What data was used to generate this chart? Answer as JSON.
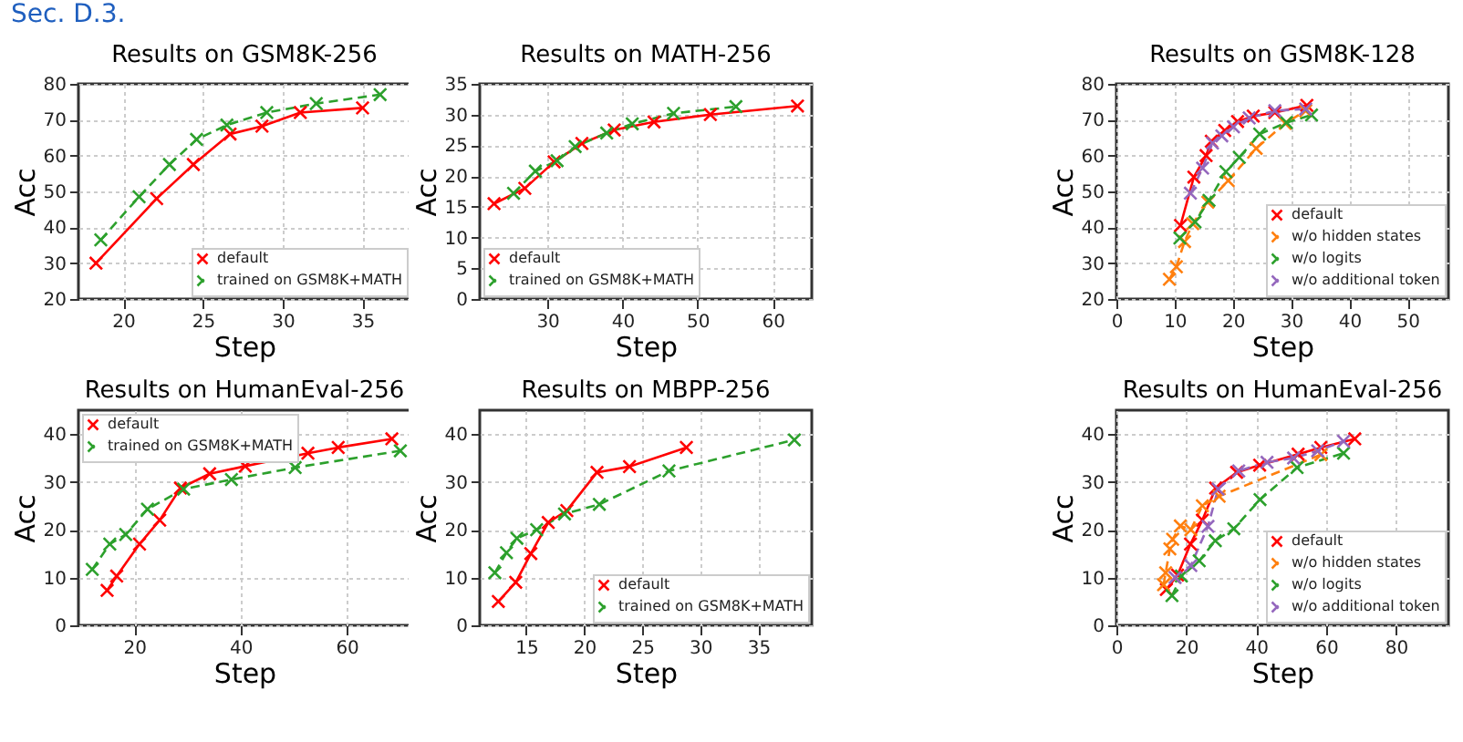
{
  "chart_data": [
    {
      "type": "line",
      "title": "Results on GSM8K-256",
      "xlabel": "Step",
      "ylabel": "Acc",
      "annotations": [
        "Sec. D.3."
      ],
      "xlim": [
        17.2,
        38
      ],
      "xticks": [
        20,
        25,
        30,
        35
      ],
      "ylim": [
        20,
        80
      ],
      "yticks": [
        20,
        30,
        40,
        50,
        60,
        70,
        80
      ],
      "grid": true,
      "legend": "bottom right",
      "marker": "cross",
      "series": [
        {
          "name": "default",
          "color": "#ff0000",
          "line_style": "solid",
          "x": [
            18.3,
            22.1,
            24.4,
            26.7,
            28.7,
            31.1,
            35
          ],
          "values": [
            30,
            48,
            57.5,
            66,
            68.2,
            72,
            73.3
          ]
        },
        {
          "name": "trained on GSM8K+MATH",
          "color": "#2ca02c",
          "line_style": "dashed",
          "x": [
            18.6,
            21,
            22.9,
            24.6,
            26.5,
            29,
            32.1,
            36.1
          ],
          "values": [
            36.5,
            48.5,
            57.5,
            64.5,
            68.5,
            72,
            74.5,
            77
          ]
        }
      ]
    },
    {
      "type": "line",
      "title": "Results on MATH-256",
      "xlabel": "Step",
      "ylabel": "Acc",
      "xlim": [
        21,
        65.2
      ],
      "xticks": [
        30,
        40,
        50,
        60
      ],
      "ylim": [
        0,
        35
      ],
      "yticks": [
        0,
        5,
        10,
        15,
        20,
        25,
        30,
        35
      ],
      "grid": true,
      "legend": "bottom left",
      "marker": "cross",
      "series": [
        {
          "name": "default",
          "color": "#ff0000",
          "line_style": "solid",
          "x": [
            22.9,
            27,
            30.9,
            34.6,
            38.9,
            44.2,
            51.7,
            63.3
          ],
          "values": [
            15.5,
            18,
            22.3,
            25.3,
            27.5,
            28.8,
            30,
            31.4
          ]
        },
        {
          "name": "trained on GSM8K+MATH",
          "color": "#2ca02c",
          "line_style": "dashed",
          "x": [
            25.5,
            28.4,
            31.3,
            33.7,
            37.9,
            41.3,
            46.8,
            55.1
          ],
          "values": [
            17.2,
            20.8,
            22.5,
            24.8,
            27,
            28.5,
            30.2,
            31.3
          ]
        }
      ]
    },
    {
      "type": "line",
      "title": "Results on GSM8K-128",
      "xlabel": "Step",
      "ylabel": "Acc",
      "xlim": [
        0,
        57
      ],
      "xticks": [
        0,
        10,
        20,
        30,
        40,
        50
      ],
      "ylim": [
        20,
        80
      ],
      "yticks": [
        20,
        30,
        40,
        50,
        60,
        70,
        80
      ],
      "grid": true,
      "legend": "bottom right",
      "marker": "cross",
      "series": [
        {
          "name": "default",
          "color": "#ff0000",
          "line_style": "solid",
          "x": [
            11,
            13.3,
            15.4,
            16.3,
            18.6,
            20.8,
            23.5,
            27.2,
            32.7
          ],
          "values": [
            40.5,
            54,
            60,
            64,
            67,
            69.5,
            71,
            72,
            74
          ]
        },
        {
          "name": "w/o hidden states",
          "color": "#ff7f0e",
          "line_style": "dashed",
          "x": [
            9.1,
            10.3,
            11.7,
            13.1,
            15.7,
            19.2,
            24,
            29,
            32.5
          ],
          "values": [
            25.5,
            29,
            36,
            41,
            47,
            53,
            62,
            69,
            72.5
          ]
        },
        {
          "name": "w/o logits",
          "color": "#2ca02c",
          "line_style": "dashed",
          "x": [
            10.9,
            13.5,
            15.9,
            18.8,
            21.1,
            24.6,
            29.2,
            33.5
          ],
          "values": [
            37,
            41.5,
            47.5,
            55.5,
            59.5,
            66,
            69.2,
            71.3
          ]
        },
        {
          "name": "w/o additional token",
          "color": "#9467bd",
          "line_style": "dashed",
          "x": [
            12.7,
            14.8,
            16.5,
            18.1,
            20.1,
            22.8,
            27.2,
            32.5
          ],
          "values": [
            49.5,
            56.5,
            63.5,
            65.5,
            68,
            70.5,
            72.5,
            73
          ]
        }
      ]
    },
    {
      "type": "line",
      "title": "Results on HumanEval-256",
      "xlabel": "Step",
      "ylabel": "Acc",
      "xlim": [
        9.5,
        72
      ],
      "xticks": [
        20,
        40,
        60
      ],
      "ylim": [
        0,
        45
      ],
      "yticks": [
        0,
        10,
        20,
        30,
        40
      ],
      "grid": true,
      "legend": "top left",
      "marker": "cross",
      "series": [
        {
          "name": "default",
          "color": "#ff0000",
          "line_style": "solid",
          "x": [
            14.9,
            16.7,
            21,
            24.8,
            28.7,
            34.2,
            40.9,
            52.7,
            58.4,
            68.5
          ],
          "values": [
            7.3,
            10.3,
            17,
            22,
            28.7,
            31.7,
            33.3,
            36,
            37.2,
            39
          ]
        },
        {
          "name": "trained on GSM8K+MATH",
          "color": "#2ca02c",
          "line_style": "dashed",
          "x": [
            12.1,
            15.4,
            18.4,
            22.5,
            29.3,
            38.3,
            50.3,
            70.1
          ],
          "values": [
            11.7,
            17,
            19,
            24.3,
            28.5,
            30.5,
            33,
            36.5
          ]
        }
      ]
    },
    {
      "type": "line",
      "title": "Results on MBPP-256",
      "xlabel": "Step",
      "ylabel": "Acc",
      "xlim": [
        11,
        39.6
      ],
      "xticks": [
        15,
        20,
        25,
        30,
        35
      ],
      "ylim": [
        0,
        45
      ],
      "yticks": [
        0,
        10,
        20,
        30,
        40
      ],
      "grid": true,
      "legend": "bottom right",
      "marker": "cross",
      "series": [
        {
          "name": "default",
          "color": "#ff0000",
          "line_style": "solid",
          "x": [
            12.6,
            14.1,
            15.4,
            16.9,
            18.5,
            21.1,
            23.9,
            28.8
          ],
          "values": [
            5,
            9,
            15,
            21.5,
            24,
            32,
            33.2,
            37.2
          ]
        },
        {
          "name": "trained on GSM8K+MATH",
          "color": "#2ca02c",
          "line_style": "dashed",
          "x": [
            12.3,
            13.3,
            14.2,
            15.9,
            18.3,
            21.3,
            27.3,
            38.1
          ],
          "values": [
            11,
            15.2,
            18.2,
            20,
            23.3,
            25.3,
            32.3,
            38.8
          ]
        }
      ]
    },
    {
      "type": "line",
      "title": "Results on HumanEval-256",
      "xlabel": "Step",
      "ylabel": "Acc",
      "xlim": [
        0,
        95
      ],
      "xticks": [
        0,
        20,
        40,
        60,
        80
      ],
      "ylim": [
        0,
        45
      ],
      "yticks": [
        0,
        10,
        20,
        30,
        40
      ],
      "grid": true,
      "legend": "bottom right",
      "marker": "cross",
      "series": [
        {
          "name": "default",
          "color": "#ff0000",
          "line_style": "solid",
          "x": [
            14.3,
            17.5,
            21.2,
            24.6,
            28.4,
            34.4,
            41,
            52,
            58.5,
            68.2
          ],
          "values": [
            7.5,
            10.5,
            17,
            22,
            28.7,
            32,
            33.5,
            35.8,
            37.2,
            39
          ]
        },
        {
          "name": "w/o hidden states",
          "color": "#ff7f0e",
          "line_style": "dashed",
          "x": [
            13.5,
            14.1,
            15.3,
            16.1,
            18.3,
            21.3,
            24.6,
            29.4,
            58.5
          ],
          "values": [
            8.5,
            11,
            16,
            18,
            20.8,
            20,
            25,
            27,
            35.7
          ]
        },
        {
          "name": "w/o logits",
          "color": "#2ca02c",
          "line_style": "dashed",
          "x": [
            15.9,
            18.6,
            23.7,
            28.3,
            33.6,
            41.1,
            51.7,
            65
          ],
          "values": [
            6.2,
            10.3,
            13.5,
            17.7,
            20.2,
            26.3,
            33,
            36
          ]
        },
        {
          "name": "w/o additional token",
          "color": "#9467bd",
          "line_style": "dashed",
          "x": [
            16.8,
            21.3,
            26.2,
            29.1,
            35,
            43.1,
            50.7,
            57.6,
            65
          ],
          "values": [
            10,
            12.5,
            20.7,
            28.5,
            32.3,
            34.1,
            35,
            36.5,
            38.5
          ]
        }
      ]
    }
  ]
}
